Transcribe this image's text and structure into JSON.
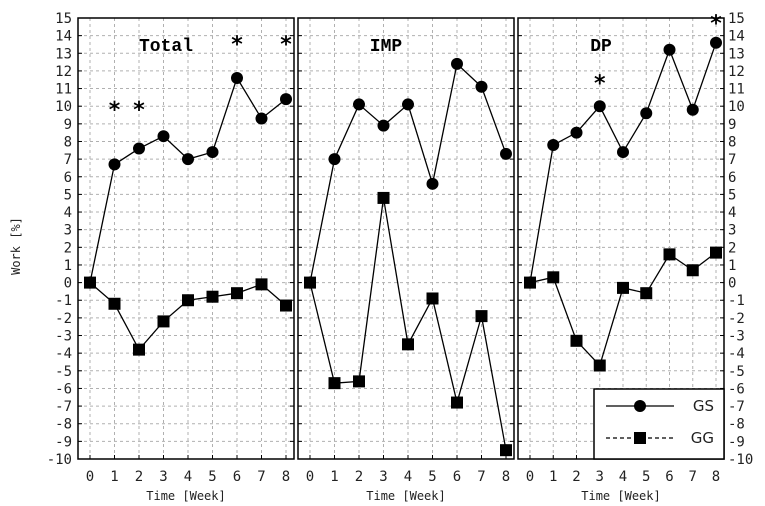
{
  "chart_data": {
    "type": "line",
    "ylabel": "Work [%]",
    "xlabel": "Time [Week]",
    "ylim": [
      -10,
      15
    ],
    "xlim": [
      0,
      8
    ],
    "yticks": [
      "15",
      "14",
      "13",
      "12",
      "11",
      "10",
      "9",
      "8",
      "7",
      "6",
      "5",
      "4",
      "3",
      "2",
      "1",
      "0",
      "-1",
      "-2",
      "-3",
      "-4",
      "-5",
      "-6",
      "-7",
      "-8",
      "-9",
      "-10"
    ],
    "xticks": [
      "0",
      "1",
      "2",
      "3",
      "4",
      "5",
      "6",
      "7",
      "8"
    ],
    "grid": true,
    "legend": {
      "position": "bottom-right",
      "entries": [
        "GS",
        "GG"
      ]
    },
    "star_symbol": "*",
    "panels": [
      {
        "title": "Total",
        "x": [
          0,
          1,
          2,
          3,
          4,
          5,
          6,
          7,
          8
        ],
        "series": [
          {
            "name": "GS",
            "marker": "circle",
            "line": "solid",
            "values": [
              0,
              6.7,
              7.6,
              8.3,
              7.0,
              7.4,
              11.6,
              9.3,
              10.4
            ]
          },
          {
            "name": "GG",
            "marker": "square",
            "line": "solid",
            "values": [
              0,
              -1.2,
              -3.8,
              -2.2,
              -1.0,
              -0.8,
              -0.6,
              -0.1,
              -1.3
            ]
          }
        ],
        "stars": [
          {
            "x": 1,
            "y": 9.9
          },
          {
            "x": 2,
            "y": 9.9
          },
          {
            "x": 6,
            "y": 13.6
          },
          {
            "x": 8,
            "y": 13.6
          }
        ]
      },
      {
        "title": "IMP",
        "x": [
          0,
          1,
          2,
          3,
          4,
          5,
          6,
          7,
          8
        ],
        "series": [
          {
            "name": "GS",
            "marker": "circle",
            "line": "solid",
            "values": [
              0,
              7.0,
              10.1,
              8.9,
              10.1,
              5.6,
              12.4,
              11.1,
              7.3
            ]
          },
          {
            "name": "GG",
            "marker": "square",
            "line": "solid",
            "values": [
              0,
              -5.7,
              -5.6,
              4.8,
              -3.5,
              -0.9,
              -6.8,
              -1.9,
              -9.5
            ]
          }
        ],
        "stars": []
      },
      {
        "title": "DP",
        "x": [
          0,
          1,
          2,
          3,
          4,
          5,
          6,
          7,
          8
        ],
        "series": [
          {
            "name": "GS",
            "marker": "circle",
            "line": "solid",
            "values": [
              0,
              7.8,
              8.5,
              10.0,
              7.4,
              9.6,
              13.2,
              9.8,
              13.6
            ]
          },
          {
            "name": "GG",
            "marker": "square",
            "line": "solid",
            "values": [
              0,
              0.3,
              -3.3,
              -4.7,
              -0.3,
              -0.6,
              1.6,
              0.7,
              1.7
            ]
          }
        ],
        "stars": [
          {
            "x": 3,
            "y": 11.4
          },
          {
            "x": 8,
            "y": 14.8
          }
        ]
      }
    ]
  }
}
